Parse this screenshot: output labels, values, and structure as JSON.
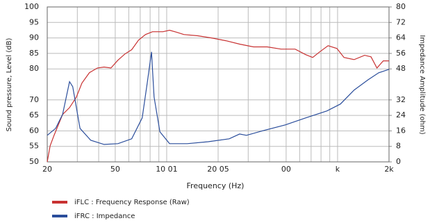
{
  "chart_data": {
    "type": "line",
    "xlabel": "Frequency (Hz)",
    "ylabel": "Sound pressure, Level (dB)",
    "y2label": "Impedance Amplitude (ohm)",
    "xscale": "log",
    "xlim": [
      20,
      2000
    ],
    "xticks": [
      20,
      50,
      {
        "value": 100,
        "label": "10 01"
      },
      {
        "value": 200,
        "label": "20 05"
      },
      {
        "value": 500,
        "label": "00"
      },
      {
        "value": 1000,
        "label": "k"
      },
      {
        "value": 2000,
        "label": "2k"
      }
    ],
    "xminor_ticks": [
      30,
      40,
      60,
      70,
      80,
      90,
      300,
      400,
      600,
      700,
      800,
      900
    ],
    "ylim": [
      50,
      100
    ],
    "yticks": [
      50,
      55,
      60,
      65,
      70,
      80,
      85,
      90,
      95,
      100
    ],
    "y2lim": [
      0,
      80
    ],
    "y2ticks": [
      0,
      8,
      16,
      24,
      32,
      48,
      56,
      64,
      72,
      80
    ],
    "grid": true,
    "legend": "bottom-left",
    "series": [
      {
        "name": "iFLC : Frequency Response (Raw)",
        "color": "#c83232",
        "axis": "y",
        "x": [
          20,
          20.8,
          21.9,
          24.6,
          27,
          29.6,
          31.9,
          35.3,
          39.3,
          43,
          47.2,
          51.8,
          56.9,
          62.4,
          68.5,
          75.2,
          82.6,
          95,
          104,
          115,
          126,
          152,
          183,
          222,
          267,
          322,
          388,
          467,
          564,
          651,
          715,
          786,
          880,
          991,
          1090,
          1250,
          1440,
          1570,
          1700,
          1850,
          2000
        ],
        "values": [
          50,
          55.2,
          58.5,
          65.3,
          67.5,
          70.9,
          75.4,
          78.8,
          80.3,
          80.6,
          80.3,
          82.8,
          84.8,
          86.2,
          89.3,
          91.1,
          92,
          92,
          92.5,
          91.8,
          91.1,
          90.7,
          90,
          89.1,
          88,
          87.1,
          87.1,
          86.4,
          86.4,
          84.6,
          83.7,
          85.5,
          87.5,
          86.6,
          83.7,
          83,
          84.4,
          83.9,
          80.3,
          82.6,
          82.6
        ]
      },
      {
        "name": "iFRC : Impedance",
        "color": "#2a4d9b",
        "axis": "y2",
        "x": [
          20,
          22.4,
          24.6,
          27,
          28.2,
          31.1,
          35.9,
          43,
          51.8,
          62.4,
          71.9,
          76.9,
          81.5,
          84.4,
          91.3,
          104,
          132,
          175,
          232,
          267,
          293,
          370,
          494,
          651,
          866,
          1040,
          1250,
          1510,
          1740,
          2000
        ],
        "values": [
          13.7,
          17.3,
          24.5,
          41.4,
          38.8,
          17.3,
          11.2,
          9,
          9.4,
          11.9,
          22.7,
          40.6,
          56.8,
          33.5,
          15.5,
          9.4,
          9.4,
          10.4,
          11.9,
          14.4,
          13.7,
          16.2,
          19.1,
          22.7,
          26.3,
          29.9,
          37.1,
          42.4,
          46,
          47.8
        ]
      }
    ]
  }
}
